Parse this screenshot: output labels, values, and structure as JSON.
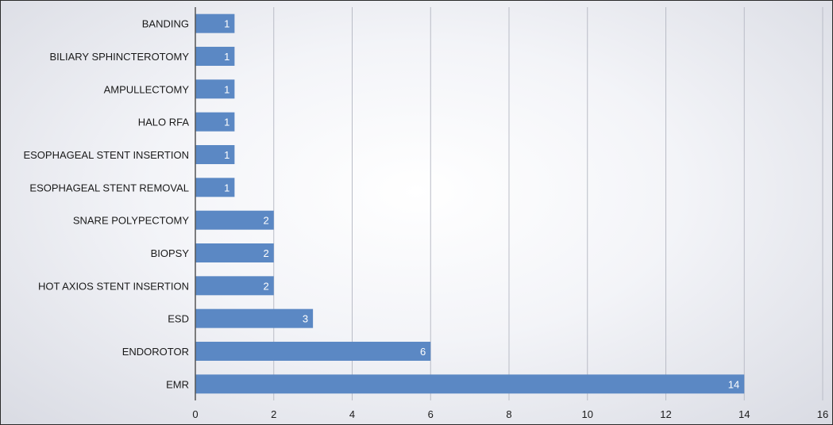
{
  "chart_data": {
    "type": "bar",
    "orientation": "horizontal",
    "title": "",
    "xlabel": "",
    "ylabel": "",
    "xlim": [
      0,
      16
    ],
    "x_ticks": [
      0,
      2,
      4,
      6,
      8,
      10,
      12,
      14,
      16
    ],
    "grid": "vertical",
    "legend": "none",
    "bar_color": "#5b88c4",
    "categories": [
      "BANDING",
      "BILIARY SPHINCTEROTOMY",
      "AMPULLECTOMY",
      "HALO RFA",
      "ESOPHAGEAL STENT INSERTION",
      "ESOPHAGEAL STENT REMOVAL",
      "SNARE POLYPECTOMY",
      "BIOPSY",
      "HOT AXIOS STENT INSERTION",
      "ESD",
      "ENDOROTOR",
      "EMR"
    ],
    "values": [
      1,
      1,
      1,
      1,
      1,
      1,
      2,
      2,
      2,
      3,
      6,
      14
    ]
  }
}
